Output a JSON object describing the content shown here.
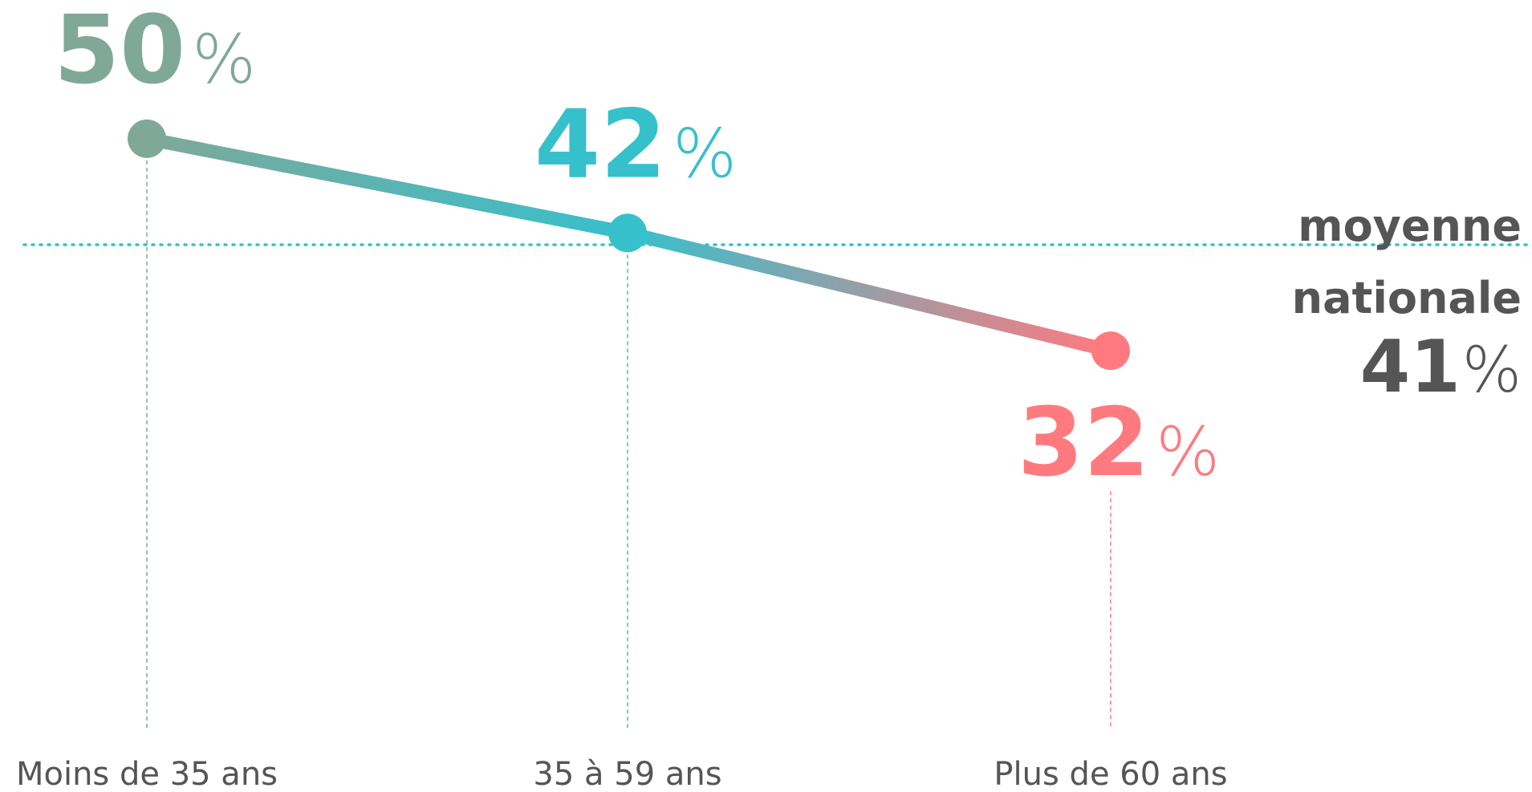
{
  "chart_data": {
    "type": "line",
    "categories": [
      "Moins de 35 ans",
      "35 à 59 ans",
      "Plus de 60 ans"
    ],
    "values": [
      50,
      42,
      32
    ],
    "value_labels": [
      "50%",
      "42%",
      "32%"
    ],
    "colors": [
      "#7fa898",
      "#36c0cc",
      "#ff7a7f"
    ],
    "ylim": [
      0,
      60
    ],
    "average": {
      "label": [
        "moyenne",
        "nationale"
      ],
      "value": 41,
      "value_label": "41%",
      "color": "#36c0cc",
      "text_color": "#555555"
    }
  }
}
